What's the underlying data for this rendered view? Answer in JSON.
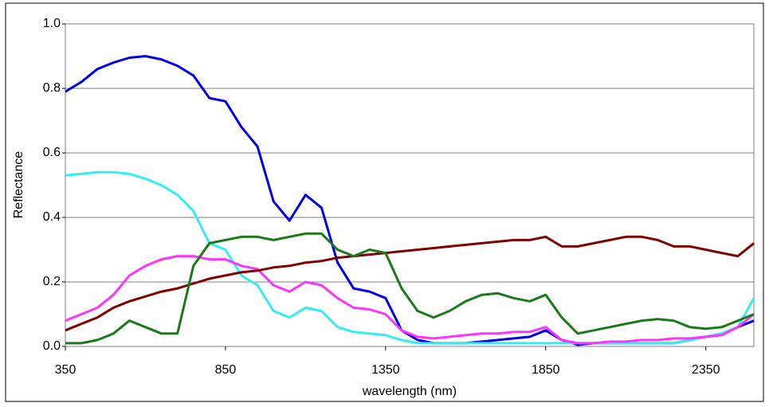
{
  "chart_data": {
    "type": "line",
    "x_label": "wavelength (nm)",
    "y_label": "Reflectance",
    "x": [
      350,
      400,
      450,
      500,
      550,
      600,
      650,
      700,
      750,
      800,
      850,
      900,
      950,
      1000,
      1050,
      1100,
      1150,
      1200,
      1250,
      1300,
      1350,
      1400,
      1450,
      1500,
      1550,
      1600,
      1650,
      1700,
      1750,
      1800,
      1850,
      1900,
      1950,
      2000,
      2050,
      2100,
      2150,
      2200,
      2250,
      2300,
      2350,
      2400,
      2450,
      2500
    ],
    "xlim": [
      350,
      2500
    ],
    "xticks": [
      350,
      850,
      1350,
      1850,
      2350
    ],
    "ylim": [
      0,
      1
    ],
    "yticks": [
      {
        "value": 0,
        "label": "0.0"
      },
      {
        "value": 0.2,
        "label": "0.2"
      },
      {
        "value": 0.4,
        "label": "0.4"
      },
      {
        "value": 0.6,
        "label": "0.6"
      },
      {
        "value": 0.8,
        "label": "0.8"
      },
      {
        "value": 1,
        "label": "1.0"
      }
    ],
    "grid": true,
    "series": [
      {
        "color": "#0000ee",
        "values": [
          0.79,
          0.82,
          0.86,
          0.88,
          0.895,
          0.9,
          0.89,
          0.87,
          0.84,
          0.77,
          0.76,
          0.68,
          0.62,
          0.45,
          0.39,
          0.47,
          0.43,
          0.26,
          0.18,
          0.17,
          0.15,
          0.05,
          0.02,
          0.01,
          0.01,
          0.01,
          0.015,
          0.02,
          0.025,
          0.03,
          0.05,
          0.02,
          0.005,
          0.01,
          0.01,
          0.01,
          0.01,
          0.01,
          0.01,
          0.02,
          0.03,
          0.04,
          0.06,
          0.08
        ]
      },
      {
        "color": "#33eeee",
        "values": [
          0.53,
          0.535,
          0.54,
          0.54,
          0.535,
          0.52,
          0.5,
          0.47,
          0.42,
          0.32,
          0.3,
          0.22,
          0.19,
          0.11,
          0.09,
          0.12,
          0.11,
          0.06,
          0.045,
          0.04,
          0.035,
          0.02,
          0.01,
          0.01,
          0.01,
          0.01,
          0.01,
          0.01,
          0.01,
          0.01,
          0.01,
          0.01,
          0.01,
          0.01,
          0.01,
          0.01,
          0.01,
          0.01,
          0.01,
          0.02,
          0.03,
          0.04,
          0.06,
          0.15
        ]
      },
      {
        "color": "#ff33ff",
        "values": [
          0.08,
          0.1,
          0.12,
          0.16,
          0.22,
          0.25,
          0.27,
          0.28,
          0.28,
          0.27,
          0.27,
          0.25,
          0.24,
          0.19,
          0.17,
          0.2,
          0.19,
          0.15,
          0.12,
          0.115,
          0.1,
          0.05,
          0.03,
          0.025,
          0.03,
          0.035,
          0.04,
          0.04,
          0.045,
          0.045,
          0.06,
          0.02,
          0.01,
          0.01,
          0.015,
          0.015,
          0.02,
          0.02,
          0.025,
          0.025,
          0.03,
          0.035,
          0.06,
          0.1
        ]
      },
      {
        "color": "#800000",
        "values": [
          0.05,
          0.07,
          0.09,
          0.12,
          0.14,
          0.155,
          0.17,
          0.18,
          0.195,
          0.21,
          0.22,
          0.23,
          0.235,
          0.245,
          0.25,
          0.26,
          0.265,
          0.275,
          0.28,
          0.285,
          0.29,
          0.295,
          0.3,
          0.305,
          0.31,
          0.315,
          0.32,
          0.325,
          0.33,
          0.33,
          0.34,
          0.31,
          0.31,
          0.32,
          0.33,
          0.34,
          0.34,
          0.33,
          0.31,
          0.31,
          0.3,
          0.29,
          0.28,
          0.32
        ]
      },
      {
        "color": "#1a7a1a",
        "values": [
          0.01,
          0.01,
          0.02,
          0.04,
          0.08,
          0.06,
          0.04,
          0.04,
          0.25,
          0.32,
          0.33,
          0.34,
          0.34,
          0.33,
          0.34,
          0.35,
          0.35,
          0.3,
          0.28,
          0.3,
          0.29,
          0.18,
          0.11,
          0.09,
          0.11,
          0.14,
          0.16,
          0.165,
          0.15,
          0.14,
          0.16,
          0.09,
          0.04,
          0.05,
          0.06,
          0.07,
          0.08,
          0.085,
          0.08,
          0.06,
          0.055,
          0.06,
          0.08,
          0.1
        ]
      }
    ]
  }
}
